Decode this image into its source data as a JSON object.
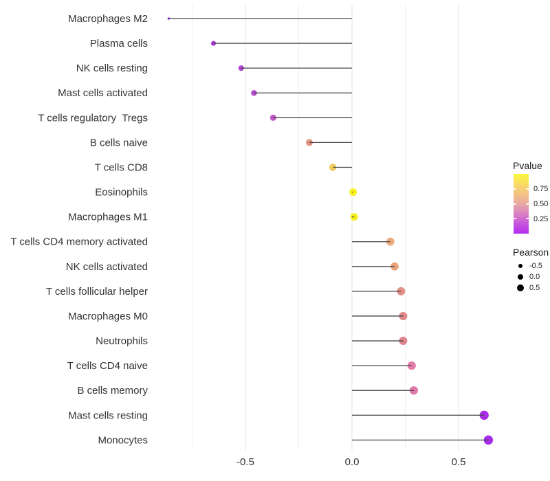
{
  "figure": {
    "background": "#ffffff"
  },
  "chart_data": {
    "type": "scatter",
    "subtype": "lollipop",
    "orientation": "horizontal",
    "title": "",
    "xlabel": "",
    "ylabel": "",
    "xlim": [
      -0.92,
      0.66
    ],
    "baseline": 0.0,
    "grid": "vertical-only",
    "x_ticks": [
      {
        "value": -0.5,
        "label": "-0.5"
      },
      {
        "value": 0.0,
        "label": "0.0"
      },
      {
        "value": 0.5,
        "label": "0.5"
      }
    ],
    "x_minor_grid": [
      -0.75,
      -0.25,
      0.25
    ],
    "rows": [
      {
        "label": "Macrophages M2",
        "pearson": -0.86,
        "dot_color": "#9B2BDE"
      },
      {
        "label": "Plasma cells",
        "pearson": -0.65,
        "dot_color": "#A73AD6"
      },
      {
        "label": "NK cells resting",
        "pearson": -0.52,
        "dot_color": "#AE44D1"
      },
      {
        "label": "Mast cells activated",
        "pearson": -0.46,
        "dot_color": "#B54DCC"
      },
      {
        "label": "T cells regulatory  Tregs",
        "pearson": -0.37,
        "dot_color": "#BE59C6"
      },
      {
        "label": "B cells naive",
        "pearson": -0.2,
        "dot_color": "#E2957E"
      },
      {
        "label": "T cells CD8",
        "pearson": -0.09,
        "dot_color": "#EFCB60"
      },
      {
        "label": "Eosinophils",
        "pearson": 0.005,
        "dot_color": "#F6F01D"
      },
      {
        "label": "Macrophages M1",
        "pearson": 0.01,
        "dot_color": "#F5EE1E"
      },
      {
        "label": "T cells CD4 memory activated",
        "pearson": 0.18,
        "dot_color": "#ECAA7D"
      },
      {
        "label": "NK cells activated",
        "pearson": 0.2,
        "dot_color": "#EAA47C"
      },
      {
        "label": "T cells follicular helper",
        "pearson": 0.23,
        "dot_color": "#E28D85"
      },
      {
        "label": "Macrophages M0",
        "pearson": 0.24,
        "dot_color": "#E08789"
      },
      {
        "label": "Neutrophils",
        "pearson": 0.24,
        "dot_color": "#DF858D"
      },
      {
        "label": "T cells CD4 naive",
        "pearson": 0.28,
        "dot_color": "#E07CA7"
      },
      {
        "label": "B cells memory",
        "pearson": 0.29,
        "dot_color": "#DE78AB"
      },
      {
        "label": "Mast cells resting",
        "pearson": 0.62,
        "dot_color": "#A92BE3"
      },
      {
        "label": "Monocytes",
        "pearson": 0.64,
        "dot_color": "#A62DE5"
      }
    ]
  },
  "legends": {
    "pvalue": {
      "title": "Pvalue",
      "range": [
        0,
        1
      ],
      "ticks": [
        {
          "value": 0.75,
          "label": "0.75"
        },
        {
          "value": 0.5,
          "label": "0.50"
        },
        {
          "value": 0.25,
          "label": "0.25"
        }
      ],
      "gradient_stops": [
        {
          "at": 0.0,
          "color": "#B32BF2"
        },
        {
          "at": 0.25,
          "color": "#D06CD0"
        },
        {
          "at": 0.5,
          "color": "#EAA9A3"
        },
        {
          "at": 0.75,
          "color": "#F8CF74"
        },
        {
          "at": 1.0,
          "color": "#FAF83C"
        }
      ]
    },
    "pearson": {
      "title": "Pearson",
      "dot_color": "#000000",
      "items": [
        {
          "value": -0.5,
          "label": "-0.5"
        },
        {
          "value": 0.0,
          "label": "0.0"
        },
        {
          "value": 0.5,
          "label": "0.5"
        }
      ]
    }
  },
  "colors": {
    "stem": "#474747",
    "gridline_major": "#E4E4E4",
    "gridline_minor": "#EFEFEF",
    "axis_text": "#333333"
  }
}
